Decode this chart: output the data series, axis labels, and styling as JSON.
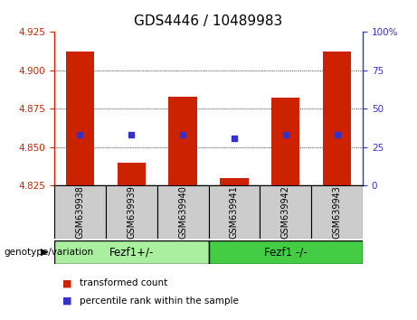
{
  "title": "GDS4446 / 10489983",
  "samples": [
    "GSM639938",
    "GSM639939",
    "GSM639940",
    "GSM639941",
    "GSM639942",
    "GSM639943"
  ],
  "bar_values": [
    4.912,
    4.84,
    4.883,
    4.83,
    4.882,
    4.912
  ],
  "percentile_values": [
    4.858,
    4.858,
    4.858,
    4.856,
    4.858,
    4.858
  ],
  "baseline": 4.825,
  "ylim_left": [
    4.825,
    4.925
  ],
  "ylim_right": [
    0,
    100
  ],
  "yticks_left": [
    4.825,
    4.85,
    4.875,
    4.9,
    4.925
  ],
  "yticks_right": [
    0,
    25,
    50,
    75,
    100
  ],
  "ytick_labels_right": [
    "0",
    "25",
    "50",
    "75",
    "100%"
  ],
  "bar_color": "#cc2200",
  "blue_color": "#3333cc",
  "groups": [
    {
      "label": "Fezf1+/-",
      "indices": [
        0,
        1,
        2
      ],
      "color": "#aaeea0"
    },
    {
      "label": "Fezf1 -/-",
      "indices": [
        3,
        4,
        5
      ],
      "color": "#44cc44"
    }
  ],
  "group_label": "genotype/variation",
  "legend_items": [
    {
      "color": "#cc2200",
      "label": "transformed count"
    },
    {
      "color": "#3333cc",
      "label": "percentile rank within the sample"
    }
  ],
  "title_fontsize": 11,
  "axis_color_left": "#cc2200",
  "axis_color_right": "#3333cc",
  "bar_width": 0.55,
  "gridlines": [
    4.85,
    4.875,
    4.9
  ],
  "sample_gray": "#cccccc",
  "sample_gray_dark": "#aaaaaa"
}
